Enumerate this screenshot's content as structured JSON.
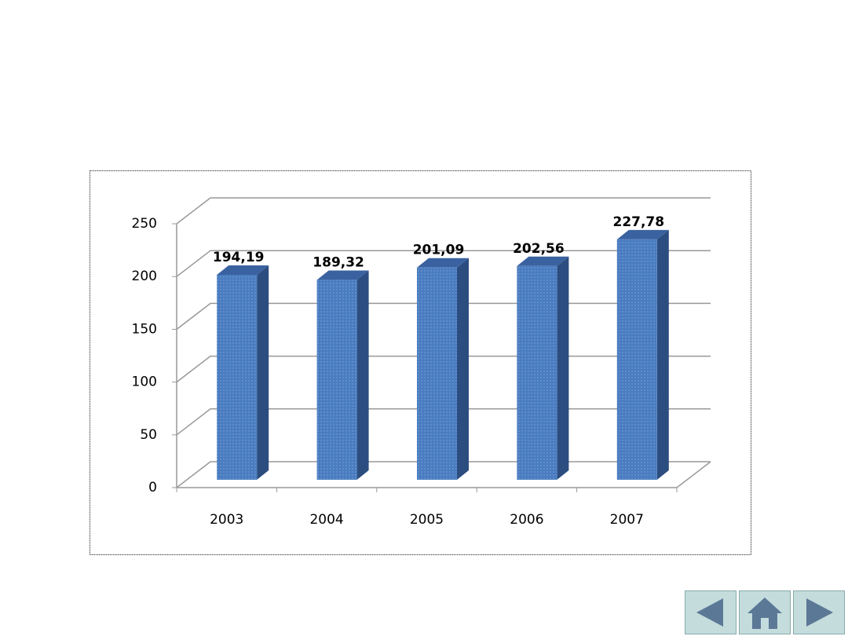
{
  "chart_data": {
    "type": "bar3d",
    "categories": [
      "2003",
      "2004",
      "2005",
      "2006",
      "2007"
    ],
    "values": [
      194.19,
      189.32,
      201.09,
      202.56,
      227.78
    ],
    "value_labels": [
      "194,19",
      "189,32",
      "201,09",
      "202,56",
      "227,78"
    ],
    "color": "#4a7cc0",
    "ylim": [
      0,
      250
    ],
    "yticks": [
      0,
      50,
      100,
      150,
      200,
      250
    ],
    "grid": true
  }
}
